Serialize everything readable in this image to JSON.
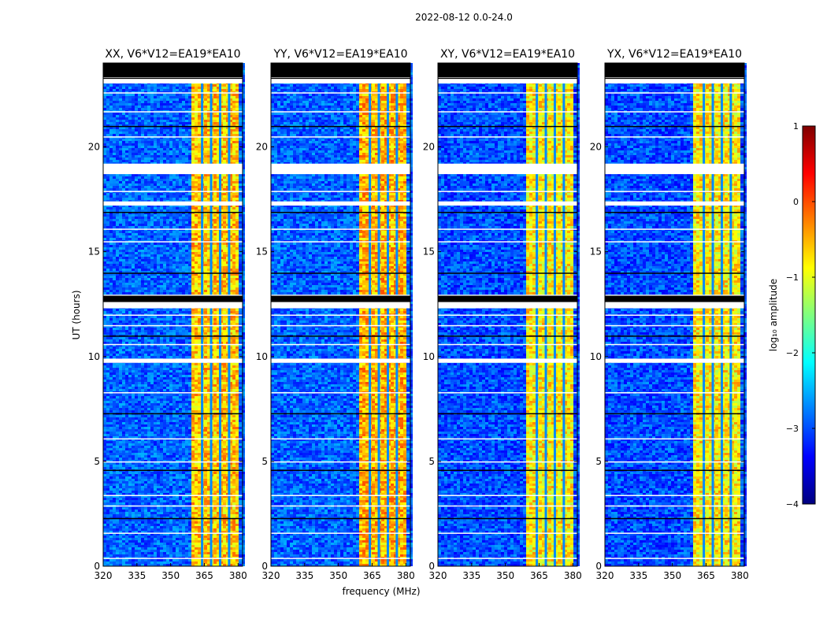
{
  "suptitle": "2022-08-12 0.0-24.0",
  "xlabel": "frequency (MHz)",
  "ylabel": "UT (hours)",
  "colorbar": {
    "label": "log₁₀ amplitude",
    "range": [
      -4,
      1
    ],
    "ticks": [
      "1",
      "0",
      "−1",
      "−2",
      "−3",
      "−4"
    ],
    "tick_values": [
      1,
      0,
      -1,
      -2,
      -3,
      -4
    ],
    "colormap": "jet",
    "colors": [
      "#00007f",
      "#0000ff",
      "#007fff",
      "#00ffff",
      "#7fff7f",
      "#ffff00",
      "#ff7f00",
      "#ff0000",
      "#7f0000"
    ]
  },
  "chart_data": {
    "type": "heatmap",
    "xlim": [
      320,
      382
    ],
    "ylim": [
      0,
      24
    ],
    "x_ticks": [
      320,
      335,
      350,
      365,
      380
    ],
    "x_tick_labels": [
      "320",
      "335",
      "350",
      "365",
      "380"
    ],
    "y_ticks": [
      0,
      5,
      10,
      15,
      20
    ],
    "y_tick_labels": [
      "0",
      "5",
      "10",
      "15",
      "20"
    ],
    "panels": [
      {
        "title": "XX, V6*V12=EA19*EA10",
        "level_out": -2.9,
        "level_in": -0.6
      },
      {
        "title": "YY, V6*V12=EA19*EA10",
        "level_out": -2.9,
        "level_in": -0.5
      },
      {
        "title": "XY, V6*V12=EA19*EA10",
        "level_out": -3.0,
        "level_in": -0.8
      },
      {
        "title": "YX, V6*V12=EA19*EA10",
        "level_out": -3.0,
        "level_in": -0.8
      }
    ],
    "rfi_band_mhz": [
      359,
      379
    ],
    "rfi_dips_mhz": [
      364,
      368,
      372,
      376
    ],
    "flagged_ut_hours": [
      [
        23.5,
        24.0
      ],
      [
        19.2,
        18.7
      ],
      [
        17.4,
        17.2
      ],
      [
        12.3,
        12.95
      ],
      [
        9.9,
        9.7
      ]
    ],
    "flag_lines_ut_hours": [
      23.3,
      22.6,
      21.7,
      21.0,
      20.5,
      17.9,
      16.9,
      16.1,
      15.5,
      14.0,
      12.0,
      11.5,
      11.0,
      10.6,
      8.3,
      7.3,
      6.1,
      5.0,
      4.6,
      3.4,
      2.9,
      2.3,
      1.6,
      0.4
    ]
  }
}
